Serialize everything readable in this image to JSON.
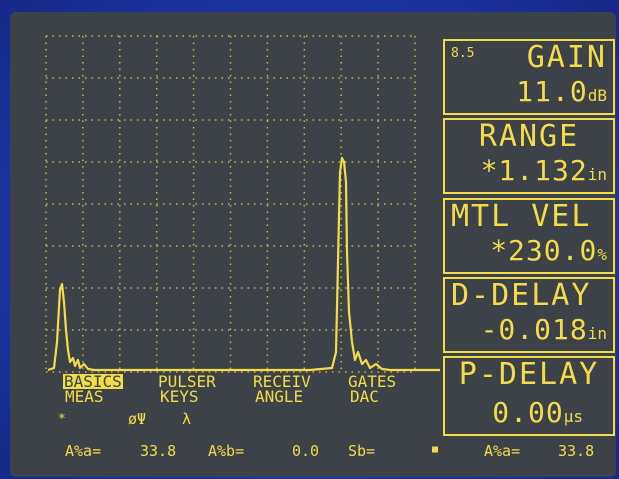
{
  "gain": {
    "small": "8.5",
    "title": "GAIN",
    "value": "11.0",
    "unit": "dB"
  },
  "range": {
    "title": "RANGE",
    "value": "*1.132",
    "unit": "in"
  },
  "mtl_vel": {
    "title": "MTL VEL",
    "value": "*230.0",
    "unit": "%"
  },
  "d_delay": {
    "title": "D-DELAY",
    "value": "-0.018",
    "unit": "in"
  },
  "p_delay": {
    "title": "P-DELAY",
    "value": "0.00",
    "unit": "µs"
  },
  "menu": {
    "tabs": [
      {
        "top": "BASICS",
        "bottom": "MEAS"
      },
      {
        "top": "PULSER",
        "bottom": "KEYS"
      },
      {
        "top": "RECEIV",
        "bottom": "ANGLE"
      },
      {
        "top": "GATES",
        "bottom": "DAC"
      }
    ],
    "active_tab": "BASICS"
  },
  "indicators": {
    "star": "*",
    "phi_theta": "øΨ",
    "lambda": "λ"
  },
  "status_bar": {
    "aza_label": "A%a=",
    "aza_value": "33.8",
    "azb_label": "A%b=",
    "azb_value": "0.0",
    "sb_label": "Sb=",
    "marker": "■",
    "aza_right_label": "A%a=",
    "aza_right_value": "33.8"
  },
  "colors": {
    "trace": "#f2dc4a",
    "screen": "#3c4247",
    "bezel": "#1e3aa8"
  }
}
